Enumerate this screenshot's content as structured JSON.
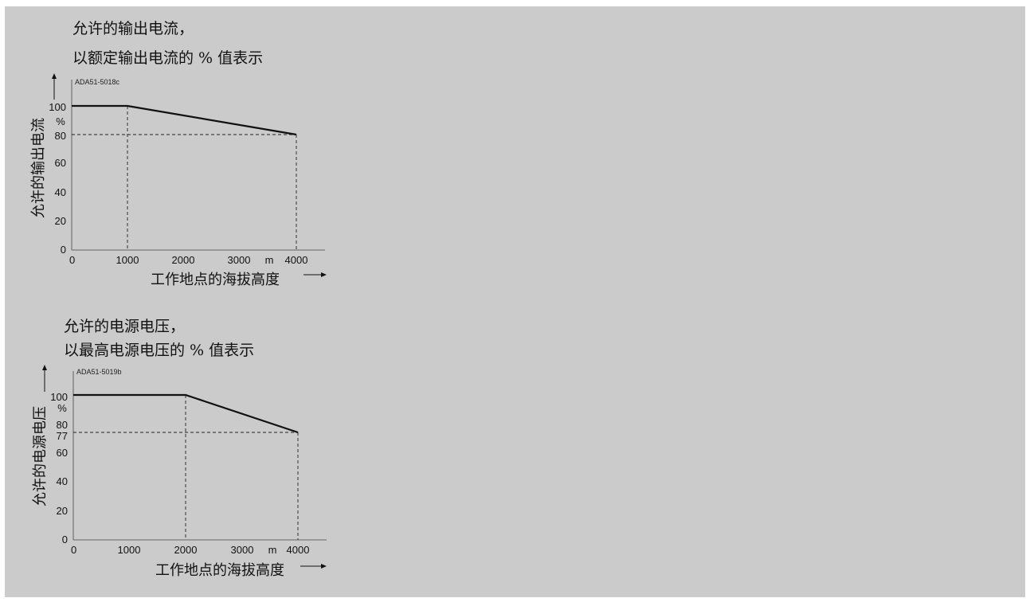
{
  "chart_data": [
    {
      "type": "line",
      "title_lines": [
        "允许的输出电流，",
        "以额定输出电流的 % 值表示"
      ],
      "code": "ADA51-5018c",
      "ylabel": "允许的输出电流",
      "xlabel": "工作地点的海拔高度",
      "x_unit": "m",
      "y_unit": "%",
      "xlim": [
        0,
        4500
      ],
      "ylim": [
        0,
        110
      ],
      "x_ticks": [
        "0",
        "1000",
        "2000",
        "3000",
        "4000"
      ],
      "y_ticks": [
        "0",
        "20",
        "40",
        "60",
        "80",
        "100"
      ],
      "series": [
        {
          "x": [
            0,
            1000,
            4000
          ],
          "y": [
            100,
            100,
            80
          ]
        }
      ],
      "reference_lines": {
        "h": [
          80
        ],
        "v": [
          1000,
          4000
        ]
      }
    },
    {
      "type": "line",
      "title_lines": [
        "允许的电源电压，",
        "以最高电源电压的 % 值表示"
      ],
      "code": "ADA51-5019b",
      "ylabel": "允许的电源电压",
      "xlabel": "工作地点的海拔高度",
      "x_unit": "m",
      "y_unit": "%",
      "xlim": [
        0,
        4500
      ],
      "ylim": [
        0,
        110
      ],
      "x_ticks": [
        "0",
        "1000",
        "2000",
        "3000",
        "4000"
      ],
      "y_ticks": [
        "0",
        "20",
        "40",
        "60",
        "77",
        "80",
        "100"
      ],
      "series": [
        {
          "x": [
            0,
            2000,
            4000
          ],
          "y": [
            100,
            100,
            77
          ]
        }
      ],
      "reference_lines": {
        "h": [
          77
        ],
        "v": [
          2000,
          4000
        ]
      }
    }
  ]
}
